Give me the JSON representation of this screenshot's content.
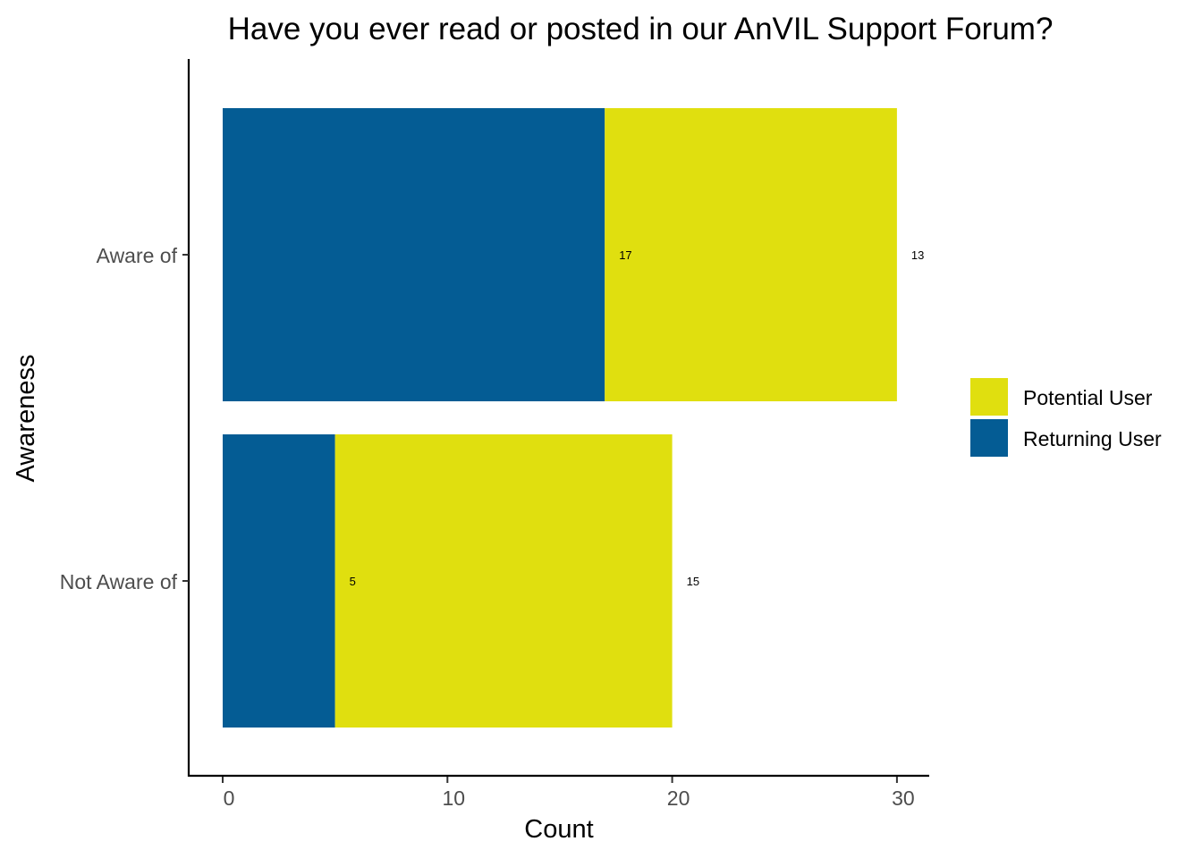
{
  "chart_data": {
    "type": "bar",
    "orientation": "horizontal",
    "stacked": true,
    "title": "Have you ever read or posted in our AnVIL Support Forum?",
    "xlabel": "Count",
    "ylabel": "Awareness",
    "categories": [
      "Aware of",
      "Not Aware of"
    ],
    "series": [
      {
        "name": "Returning User",
        "values": [
          17,
          5
        ],
        "color": "#045C94"
      },
      {
        "name": "Potential User",
        "values": [
          13,
          15
        ],
        "color": "#E0DF0F"
      }
    ],
    "xlim": [
      0,
      31.5
    ],
    "xticks": [
      0,
      10,
      20,
      30
    ],
    "legend": {
      "position": "right",
      "entries": [
        "Potential User",
        "Returning User"
      ]
    },
    "grid": false
  }
}
